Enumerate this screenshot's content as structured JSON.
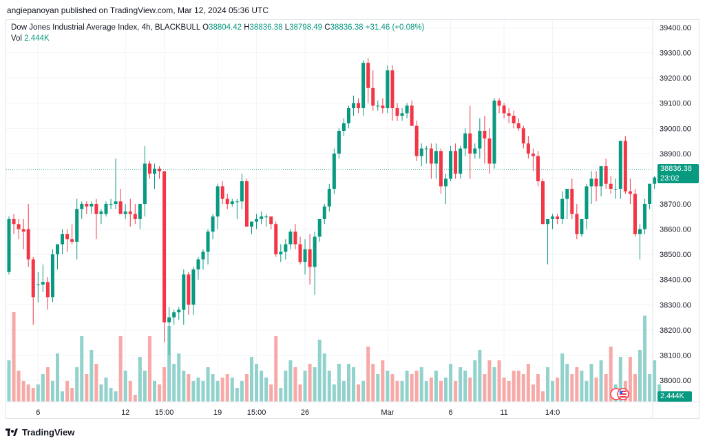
{
  "publisher_line": "angiepanoyan published on TradingView.com, Mar 12, 2024 05:36 UTC",
  "legend": {
    "symbol": "Dow Jones Industrial Average Index, 4h, BLACKBULL",
    "o_label": "O",
    "o_value": "38804.42",
    "h_label": "H",
    "h_value": "38836.38",
    "l_label": "L",
    "l_value": "38798.49",
    "c_label": "C",
    "c_value": "38836.38",
    "change": "+31.46 (+0.08%)",
    "vol_label": "Vol",
    "vol_value": "2.444K"
  },
  "price_tag": {
    "price": "38836.38",
    "countdown": "23:02"
  },
  "vol_tag": "2.444K",
  "footer_brand": "TradingView",
  "colors": {
    "up": "#089981",
    "down": "#f23645",
    "up_vol": "#92d2cc",
    "down_vol": "#f7a9a7",
    "grid": "#f0f3fa"
  },
  "chart_data": {
    "type": "candlestick",
    "title": "Dow Jones Industrial Average Index, 4h, BLACKBULL",
    "ylim": [
      37920,
      39460
    ],
    "y_ticks": [
      "39400.00",
      "39300.00",
      "39200.00",
      "39100.00",
      "39000.00",
      "38900.00",
      "38800.00",
      "38700.00",
      "38600.00",
      "38500.00",
      "38400.00",
      "38300.00",
      "38200.00",
      "38100.00",
      "38000.00"
    ],
    "x_ticks": [
      {
        "label": "6",
        "index": 6
      },
      {
        "label": "12",
        "index": 24
      },
      {
        "label": "15:00",
        "index": 32
      },
      {
        "label": "19",
        "index": 43
      },
      {
        "label": "15:00",
        "index": 51
      },
      {
        "label": "26",
        "index": 61
      },
      {
        "label": "Mar",
        "index": 78
      },
      {
        "label": "6",
        "index": 91
      },
      {
        "label": "11",
        "index": 102
      },
      {
        "label": "14:0",
        "index": 112
      }
    ],
    "last_price": 38836.38,
    "series": [
      {
        "name": "Price",
        "values": [
          [
            38430,
            38650,
            38420,
            38640
          ],
          [
            38640,
            38660,
            38580,
            38620
          ],
          [
            38620,
            38640,
            38560,
            38600
          ],
          [
            38600,
            38640,
            38520,
            38590
          ],
          [
            38600,
            38700,
            38450,
            38480
          ],
          [
            38480,
            38490,
            38220,
            38330
          ],
          [
            38380,
            38430,
            38310,
            38380
          ],
          [
            38380,
            38460,
            38350,
            38390
          ],
          [
            38390,
            38410,
            38280,
            38330
          ],
          [
            38330,
            38520,
            38310,
            38500
          ],
          [
            38500,
            38540,
            38440,
            38540
          ],
          [
            38540,
            38600,
            38500,
            38580
          ],
          [
            38580,
            38600,
            38510,
            38560
          ],
          [
            38560,
            38620,
            38540,
            38550
          ],
          [
            38550,
            38720,
            38480,
            38680
          ],
          [
            38680,
            38710,
            38640,
            38700
          ],
          [
            38700,
            38710,
            38660,
            38690
          ],
          [
            38690,
            38710,
            38660,
            38700
          ],
          [
            38700,
            38720,
            38560,
            38660
          ],
          [
            38660,
            38680,
            38620,
            38670
          ],
          [
            38660,
            38710,
            38650,
            38700
          ],
          [
            38700,
            38720,
            38680,
            38700
          ],
          [
            38700,
            38880,
            38680,
            38710
          ],
          [
            38710,
            38760,
            38660,
            38660
          ],
          [
            38660,
            38700,
            38640,
            38670
          ],
          [
            38670,
            38720,
            38610,
            38660
          ],
          [
            38660,
            38700,
            38620,
            38640
          ],
          [
            38640,
            38700,
            38600,
            38700
          ],
          [
            38700,
            38930,
            38650,
            38860
          ],
          [
            38860,
            38870,
            38800,
            38820
          ],
          [
            38820,
            38860,
            38760,
            38840
          ],
          [
            38840,
            38850,
            38800,
            38830
          ],
          [
            38830,
            38830,
            38150,
            38230
          ],
          [
            38230,
            38290,
            38100,
            38250
          ],
          [
            38250,
            38280,
            38220,
            38270
          ],
          [
            38270,
            38290,
            38240,
            38280
          ],
          [
            38280,
            38440,
            38220,
            38420
          ],
          [
            38420,
            38430,
            38260,
            38300
          ],
          [
            38300,
            38450,
            38260,
            38440
          ],
          [
            38440,
            38490,
            38400,
            38480
          ],
          [
            38480,
            38520,
            38440,
            38510
          ],
          [
            38510,
            38600,
            38460,
            38590
          ],
          [
            38590,
            38660,
            38560,
            38650
          ],
          [
            38650,
            38780,
            38600,
            38770
          ],
          [
            38770,
            38790,
            38700,
            38720
          ],
          [
            38720,
            38740,
            38680,
            38700
          ],
          [
            38700,
            38720,
            38690,
            38710
          ],
          [
            38710,
            38720,
            38640,
            38710
          ],
          [
            38710,
            38820,
            38680,
            38790
          ],
          [
            38790,
            38800,
            38610,
            38610
          ],
          [
            38610,
            38630,
            38580,
            38630
          ],
          [
            38630,
            38660,
            38600,
            38640
          ],
          [
            38640,
            38670,
            38620,
            38650
          ],
          [
            38650,
            38660,
            38610,
            38650
          ],
          [
            38650,
            38650,
            38600,
            38620
          ],
          [
            38620,
            38630,
            38490,
            38500
          ],
          [
            38500,
            38540,
            38470,
            38510
          ],
          [
            38510,
            38560,
            38480,
            38540
          ],
          [
            38540,
            38600,
            38520,
            38590
          ],
          [
            38590,
            38620,
            38520,
            38540
          ],
          [
            38540,
            38570,
            38460,
            38470
          ],
          [
            38470,
            38560,
            38420,
            38520
          ],
          [
            38520,
            38580,
            38380,
            38450
          ],
          [
            38450,
            38590,
            38340,
            38570
          ],
          [
            38570,
            38640,
            38550,
            38640
          ],
          [
            38640,
            38700,
            38620,
            38690
          ],
          [
            38690,
            38780,
            38670,
            38760
          ],
          [
            38760,
            38920,
            38740,
            38900
          ],
          [
            38900,
            39000,
            38880,
            38990
          ],
          [
            38990,
            39040,
            38970,
            39020
          ],
          [
            39020,
            39090,
            39000,
            39080
          ],
          [
            39080,
            39130,
            39050,
            39100
          ],
          [
            39100,
            39120,
            39060,
            39080
          ],
          [
            39080,
            39270,
            39050,
            39260
          ],
          [
            39260,
            39280,
            39100,
            39160
          ],
          [
            39160,
            39230,
            39070,
            39090
          ],
          [
            39090,
            39110,
            39070,
            39090
          ],
          [
            39090,
            39120,
            39060,
            39080
          ],
          [
            39080,
            39250,
            39060,
            39230
          ],
          [
            39230,
            39250,
            39030,
            39080
          ],
          [
            39080,
            39100,
            39030,
            39050
          ],
          [
            39050,
            39080,
            39030,
            39060
          ],
          [
            39060,
            39100,
            39040,
            39090
          ],
          [
            39090,
            39110,
            39010,
            39010
          ],
          [
            39010,
            39030,
            38870,
            38890
          ],
          [
            38890,
            38940,
            38850,
            38920
          ],
          [
            38920,
            38930,
            38860,
            38920
          ],
          [
            38920,
            38940,
            38800,
            38860
          ],
          [
            38860,
            38940,
            38800,
            38910
          ],
          [
            38910,
            38920,
            38740,
            38770
          ],
          [
            38770,
            38820,
            38700,
            38800
          ],
          [
            38800,
            38930,
            38790,
            38910
          ],
          [
            38910,
            38940,
            38800,
            38820
          ],
          [
            38820,
            38930,
            38800,
            38920
          ],
          [
            38920,
            39000,
            38890,
            38980
          ],
          [
            38980,
            39090,
            38800,
            38900
          ],
          [
            38900,
            38940,
            38880,
            38920
          ],
          [
            38920,
            39040,
            38880,
            38990
          ],
          [
            38990,
            39050,
            38860,
            38960
          ],
          [
            38960,
            39000,
            38820,
            38860
          ],
          [
            38860,
            39120,
            38840,
            39110
          ],
          [
            39110,
            39120,
            39060,
            39090
          ],
          [
            39090,
            39100,
            39040,
            39060
          ],
          [
            39060,
            39080,
            39020,
            39050
          ],
          [
            39050,
            39070,
            39000,
            39020
          ],
          [
            39020,
            39040,
            38990,
            39000
          ],
          [
            39000,
            39010,
            38920,
            38940
          ],
          [
            38940,
            38970,
            38880,
            38900
          ],
          [
            38900,
            38920,
            38830,
            38890
          ],
          [
            38890,
            38910,
            38770,
            38790
          ],
          [
            38790,
            38800,
            38620,
            38620
          ],
          [
            38620,
            38640,
            38460,
            38640
          ],
          [
            38640,
            38660,
            38600,
            38650
          ],
          [
            38650,
            38660,
            38620,
            38640
          ],
          [
            38640,
            38750,
            38620,
            38720
          ],
          [
            38720,
            38760,
            38640,
            38760
          ],
          [
            38760,
            38800,
            38640,
            38660
          ],
          [
            38660,
            38700,
            38560,
            38580
          ],
          [
            38580,
            38640,
            38570,
            38640
          ],
          [
            38640,
            38780,
            38600,
            38770
          ],
          [
            38770,
            38830,
            38700,
            38800
          ],
          [
            38800,
            38830,
            38710,
            38770
          ],
          [
            38770,
            38850,
            38730,
            38850
          ],
          [
            38850,
            38880,
            38760,
            38780
          ],
          [
            38780,
            38810,
            38740,
            38760
          ],
          [
            38760,
            38800,
            38720,
            38760
          ],
          [
            38760,
            38950,
            38720,
            38950
          ],
          [
            38950,
            38970,
            38740,
            38750
          ],
          [
            38750,
            38800,
            38700,
            38740
          ],
          [
            38740,
            38760,
            38570,
            38580
          ],
          [
            38580,
            38620,
            38480,
            38600
          ],
          [
            38600,
            38720,
            38580,
            38700
          ],
          [
            38700,
            38780,
            38680,
            38780
          ],
          [
            38780,
            38810,
            38760,
            38805
          ],
          [
            38804,
            38837,
            38798,
            38836
          ]
        ]
      },
      {
        "name": "Vol",
        "values": [
          1.2,
          2.6,
          0.9,
          0.6,
          0.5,
          0.4,
          0.5,
          0.8,
          1.0,
          0.6,
          1.4,
          0.3,
          0.6,
          0.4,
          1.0,
          1.9,
          0.8,
          1.5,
          1.1,
          0.5,
          0.7,
          0.4,
          0.3,
          1.9,
          0.9,
          0.6,
          0.2,
          1.3,
          0.9,
          1.9,
          0.6,
          0.5,
          1.0,
          2.2,
          1.1,
          1.4,
          0.9,
          0.8,
          0.6,
          0.7,
          0.6,
          1.0,
          0.8,
          0.6,
          0.7,
          0.8,
          0.7,
          0.4,
          0.6,
          0.8,
          1.3,
          1.1,
          0.9,
          0.7,
          0.5,
          1.9,
          0.4,
          0.9,
          1.2,
          1.0,
          0.5,
          0.9,
          1.1,
          1.0,
          1.8,
          1.4,
          0.9,
          0.5,
          1.1,
          0.6,
          1.1,
          1.0,
          0.5,
          0.6,
          1.6,
          1.1,
          0.8,
          1.2,
          0.9,
          0.8,
          0.6,
          0.6,
          0.9,
          0.8,
          0.9,
          1.0,
          0.6,
          0.7,
          0.9,
          0.6,
          0.7,
          1.1,
          0.6,
          1.0,
          0.9,
          0.7,
          1.2,
          1.5,
          0.8,
          1.2,
          1.0,
          1.2,
          0.7,
          0.6,
          0.9,
          0.9,
          0.8,
          1.1,
          0.5,
          0.8,
          0.3,
          1.0,
          0.6,
          0.7,
          1.4,
          1.1,
          0.8,
          1.0,
          0.9,
          0.6,
          1.1,
          0.7,
          1.2,
          0.8,
          1.6,
          0.5,
          1.3,
          0.6,
          1.3,
          0.8,
          1.5,
          2.5,
          0.8,
          1.2,
          0.5
        ]
      }
    ]
  }
}
